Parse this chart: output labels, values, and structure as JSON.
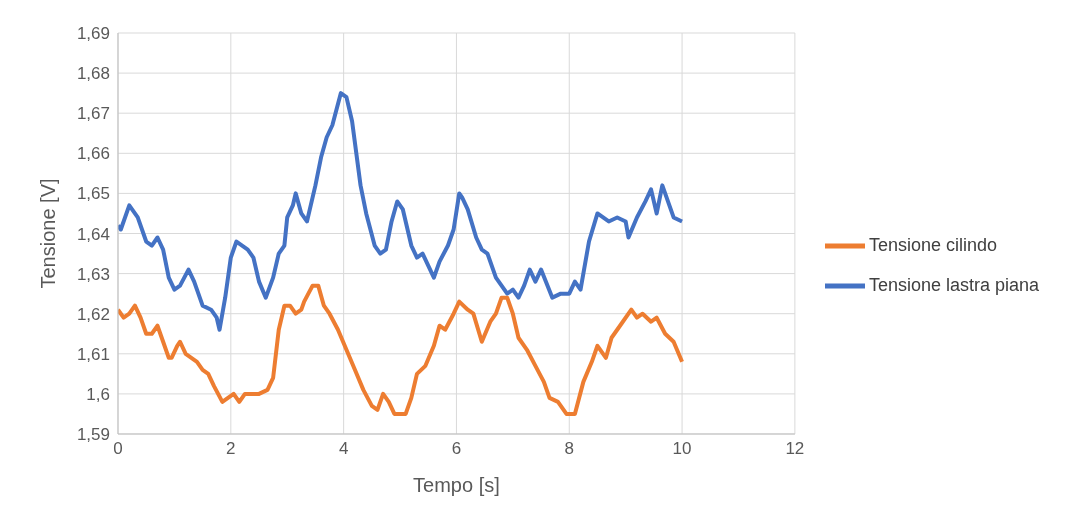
{
  "chart_data": {
    "type": "line",
    "xlabel": "Tempo [s]",
    "ylabel": "Tensione [V]",
    "xlim": [
      0,
      12
    ],
    "xticks": [
      0,
      2,
      4,
      6,
      8,
      10,
      12
    ],
    "ylim": [
      1.59,
      1.69
    ],
    "yticks": [
      {
        "value": 1.59,
        "label": "1,59"
      },
      {
        "value": 1.6,
        "label": "1,6"
      },
      {
        "value": 1.61,
        "label": "1,61"
      },
      {
        "value": 1.62,
        "label": "1,62"
      },
      {
        "value": 1.63,
        "label": "1,63"
      },
      {
        "value": 1.64,
        "label": "1,64"
      },
      {
        "value": 1.65,
        "label": "1,65"
      },
      {
        "value": 1.66,
        "label": "1,66"
      },
      {
        "value": 1.67,
        "label": "1,67"
      },
      {
        "value": 1.68,
        "label": "1,68"
      },
      {
        "value": 1.69,
        "label": "1,69"
      }
    ],
    "grid": true,
    "legend": "right",
    "marker": "none",
    "line_style": "solid",
    "series": [
      {
        "name": "Tensione lastra piana",
        "color": "#4472c4",
        "x": [
          0,
          0.05,
          0.2,
          0.35,
          0.5,
          0.6,
          0.7,
          0.8,
          0.9,
          1.0,
          1.1,
          1.25,
          1.35,
          1.5,
          1.65,
          1.75,
          1.8,
          1.9,
          2.0,
          2.1,
          2.3,
          2.4,
          2.5,
          2.62,
          2.75,
          2.85,
          2.95,
          3.0,
          3.1,
          3.15,
          3.25,
          3.35,
          3.5,
          3.6,
          3.7,
          3.8,
          3.95,
          4.05,
          4.15,
          4.3,
          4.4,
          4.55,
          4.65,
          4.75,
          4.85,
          4.95,
          5.05,
          5.2,
          5.3,
          5.4,
          5.5,
          5.6,
          5.7,
          5.85,
          5.95,
          6.05,
          6.1,
          6.2,
          6.35,
          6.45,
          6.55,
          6.7,
          6.8,
          6.9,
          7.0,
          7.1,
          7.2,
          7.3,
          7.4,
          7.5,
          7.7,
          7.85,
          8.0,
          8.1,
          8.2,
          8.35,
          8.5,
          8.6,
          8.7,
          8.85,
          9.0,
          9.05,
          9.2,
          9.35,
          9.45,
          9.55,
          9.65,
          9.75,
          9.85,
          10.0
        ],
        "values": [
          1.642,
          1.641,
          1.647,
          1.644,
          1.638,
          1.637,
          1.639,
          1.636,
          1.629,
          1.626,
          1.627,
          1.631,
          1.628,
          1.622,
          1.621,
          1.619,
          1.616,
          1.624,
          1.634,
          1.638,
          1.636,
          1.634,
          1.628,
          1.624,
          1.629,
          1.635,
          1.637,
          1.644,
          1.647,
          1.65,
          1.645,
          1.643,
          1.652,
          1.659,
          1.664,
          1.667,
          1.675,
          1.674,
          1.668,
          1.652,
          1.645,
          1.637,
          1.635,
          1.636,
          1.643,
          1.648,
          1.646,
          1.637,
          1.634,
          1.635,
          1.632,
          1.629,
          1.633,
          1.637,
          1.641,
          1.65,
          1.649,
          1.646,
          1.639,
          1.636,
          1.635,
          1.629,
          1.627,
          1.625,
          1.626,
          1.624,
          1.627,
          1.631,
          1.628,
          1.631,
          1.624,
          1.625,
          1.625,
          1.628,
          1.626,
          1.638,
          1.645,
          1.644,
          1.643,
          1.644,
          1.643,
          1.639,
          1.644,
          1.648,
          1.651,
          1.645,
          1.652,
          1.648,
          1.644,
          1.643
        ]
      },
      {
        "name": "Tensione cilindo",
        "color": "#ed7d31",
        "x": [
          0,
          0.1,
          0.2,
          0.3,
          0.4,
          0.5,
          0.6,
          0.7,
          0.8,
          0.9,
          0.95,
          1.05,
          1.1,
          1.2,
          1.3,
          1.4,
          1.5,
          1.6,
          1.7,
          1.85,
          1.95,
          2.05,
          2.15,
          2.25,
          2.4,
          2.5,
          2.65,
          2.75,
          2.85,
          2.95,
          3.05,
          3.15,
          3.25,
          3.3,
          3.45,
          3.55,
          3.65,
          3.75,
          3.9,
          4.05,
          4.2,
          4.35,
          4.5,
          4.6,
          4.7,
          4.8,
          4.9,
          5.1,
          5.2,
          5.3,
          5.45,
          5.6,
          5.7,
          5.8,
          5.95,
          6.05,
          6.2,
          6.3,
          6.45,
          6.6,
          6.7,
          6.8,
          6.9,
          7.0,
          7.1,
          7.25,
          7.4,
          7.55,
          7.65,
          7.8,
          7.95,
          8.1,
          8.25,
          8.4,
          8.5,
          8.65,
          8.75,
          8.9,
          9.1,
          9.2,
          9.3,
          9.45,
          9.55,
          9.7,
          9.85,
          10.0
        ],
        "values": [
          1.621,
          1.619,
          1.62,
          1.622,
          1.619,
          1.615,
          1.615,
          1.617,
          1.613,
          1.609,
          1.609,
          1.612,
          1.613,
          1.61,
          1.609,
          1.608,
          1.606,
          1.605,
          1.602,
          1.598,
          1.599,
          1.6,
          1.598,
          1.6,
          1.6,
          1.6,
          1.601,
          1.604,
          1.616,
          1.622,
          1.622,
          1.62,
          1.621,
          1.623,
          1.627,
          1.627,
          1.622,
          1.62,
          1.616,
          1.611,
          1.606,
          1.601,
          1.597,
          1.596,
          1.6,
          1.598,
          1.595,
          1.595,
          1.599,
          1.605,
          1.607,
          1.612,
          1.617,
          1.616,
          1.62,
          1.623,
          1.621,
          1.62,
          1.613,
          1.618,
          1.62,
          1.624,
          1.624,
          1.62,
          1.614,
          1.611,
          1.607,
          1.603,
          1.599,
          1.598,
          1.595,
          1.595,
          1.603,
          1.608,
          1.612,
          1.609,
          1.614,
          1.617,
          1.621,
          1.619,
          1.62,
          1.618,
          1.619,
          1.615,
          1.613,
          1.608
        ]
      }
    ]
  }
}
